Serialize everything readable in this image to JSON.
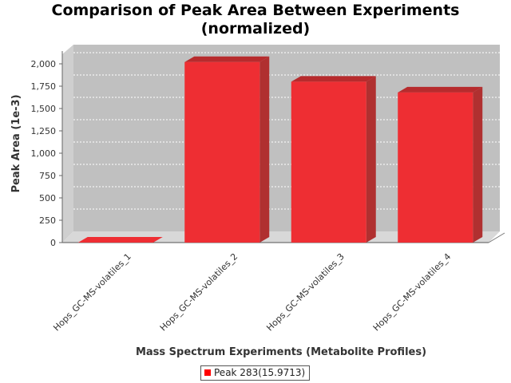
{
  "chart_data": {
    "type": "bar",
    "title_lines": [
      "Comparison of Peak Area Between Experiments",
      "(normalized)"
    ],
    "xlabel": "Mass Spectrum Experiments (Metabolite Profiles)",
    "ylabel": "Peak Area (1e-3)",
    "categories": [
      "Hops_GC-MS-volatiles_1",
      "Hops_GC-MS-volatiles_2",
      "Hops_GC-MS-volatiles_3",
      "Hops_GC-MS-volatiles_4"
    ],
    "series": [
      {
        "name": "Peak 283(15.9713)",
        "values": [
          0,
          2020,
          1800,
          1680
        ]
      }
    ],
    "ylim": [
      0,
      2150
    ],
    "yticks": [
      0,
      250,
      500,
      750,
      1000,
      1250,
      1500,
      1750,
      2000
    ],
    "ytick_labels": [
      "0",
      "250",
      "500",
      "750",
      "1,000",
      "1,250",
      "1,500",
      "1,750",
      "2,000"
    ],
    "grid": true,
    "style": "3d",
    "legend_position": "bottom",
    "colors": {
      "bar_front": "#ee2e33",
      "bar_top": "#b72b2d",
      "bar_side": "#b03030",
      "plot_bg": "#c0c0c0",
      "floor": "#d8d8d8"
    }
  }
}
